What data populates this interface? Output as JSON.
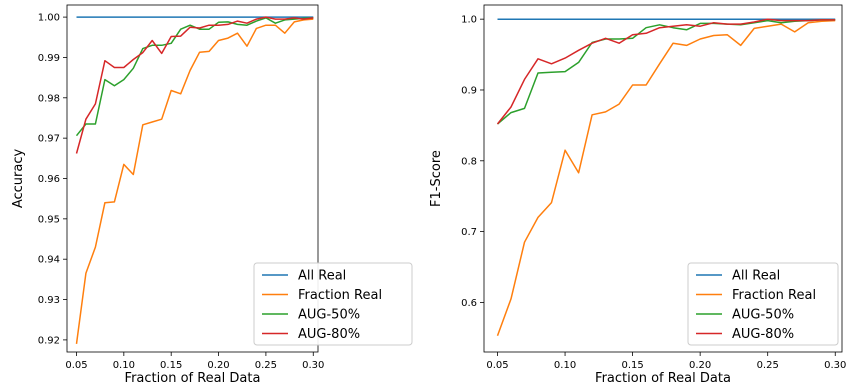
{
  "chart_data": [
    {
      "type": "line",
      "title": "",
      "xlabel": "Fraction of Real Data",
      "ylabel": "Accuracy",
      "xlim": [
        0.04,
        0.305
      ],
      "ylim": [
        0.917,
        1.003
      ],
      "xticks": [
        0.05,
        0.1,
        0.15,
        0.2,
        0.25,
        0.3
      ],
      "xtick_labels": [
        "0.05",
        "0.10",
        "0.15",
        "0.20",
        "0.25",
        "0.30"
      ],
      "yticks": [
        0.92,
        0.93,
        0.94,
        0.95,
        0.96,
        0.97,
        0.98,
        0.99,
        1.0
      ],
      "ytick_labels": [
        "0.92",
        "0.93",
        "0.94",
        "0.95",
        "0.96",
        "0.97",
        "0.98",
        "0.99",
        "1.00"
      ],
      "grid": false,
      "legend_position": "bottom-right",
      "x": [
        0.05,
        0.06,
        0.07,
        0.08,
        0.09,
        0.1,
        0.11,
        0.12,
        0.13,
        0.14,
        0.15,
        0.16,
        0.17,
        0.18,
        0.19,
        0.2,
        0.21,
        0.22,
        0.23,
        0.24,
        0.25,
        0.26,
        0.27,
        0.28,
        0.29,
        0.3
      ],
      "series": [
        {
          "name": "All Real",
          "color": "#1f77b4",
          "values": [
            1.0,
            1.0,
            1.0,
            1.0,
            1.0,
            1.0,
            1.0,
            1.0,
            1.0,
            1.0,
            1.0,
            1.0,
            1.0,
            1.0,
            1.0,
            1.0,
            1.0,
            1.0,
            1.0,
            1.0,
            1.0,
            1.0,
            1.0,
            1.0,
            1.0,
            1.0
          ]
        },
        {
          "name": "Fraction Real",
          "color": "#ff7f0e",
          "values": [
            0.919,
            0.9365,
            0.943,
            0.954,
            0.9542,
            0.9635,
            0.961,
            0.9733,
            0.974,
            0.9747,
            0.9818,
            0.981,
            0.9868,
            0.9913,
            0.9915,
            0.9942,
            0.9948,
            0.996,
            0.9928,
            0.9972,
            0.998,
            0.998,
            0.996,
            0.9988,
            0.9993,
            0.9995
          ]
        },
        {
          "name": "AUG-50%",
          "color": "#2ca02c",
          "values": [
            0.9706,
            0.9735,
            0.9735,
            0.9845,
            0.983,
            0.9845,
            0.9873,
            0.9922,
            0.993,
            0.993,
            0.9935,
            0.997,
            0.998,
            0.997,
            0.997,
            0.9987,
            0.9988,
            0.9982,
            0.998,
            0.999,
            0.9998,
            0.9985,
            0.9993,
            0.9995,
            0.9997,
            0.9998
          ]
        },
        {
          "name": "AUG-80%",
          "color": "#d62728",
          "values": [
            0.9662,
            0.9747,
            0.9785,
            0.9892,
            0.9875,
            0.9875,
            0.9895,
            0.9912,
            0.9942,
            0.991,
            0.9952,
            0.9953,
            0.9975,
            0.9973,
            0.998,
            0.998,
            0.9982,
            0.999,
            0.9985,
            0.9995,
            1.0,
            0.9995,
            0.9995,
            0.9998,
            0.9995,
            0.9998
          ]
        }
      ]
    },
    {
      "type": "line",
      "title": "",
      "xlabel": "Fraction of Real Data",
      "ylabel": "F1-Score",
      "xlim": [
        0.04,
        0.305
      ],
      "ylim": [
        0.53,
        1.02
      ],
      "xticks": [
        0.05,
        0.1,
        0.15,
        0.2,
        0.25,
        0.3
      ],
      "xtick_labels": [
        "0.05",
        "0.10",
        "0.15",
        "0.20",
        "0.25",
        "0.30"
      ],
      "yticks": [
        0.6,
        0.7,
        0.8,
        0.9,
        1.0
      ],
      "ytick_labels": [
        "0.6",
        "0.7",
        "0.8",
        "0.9",
        "1.0"
      ],
      "grid": false,
      "legend_position": "bottom-right",
      "x": [
        0.05,
        0.06,
        0.07,
        0.08,
        0.09,
        0.1,
        0.11,
        0.12,
        0.13,
        0.14,
        0.15,
        0.16,
        0.17,
        0.18,
        0.19,
        0.2,
        0.21,
        0.22,
        0.23,
        0.24,
        0.25,
        0.26,
        0.27,
        0.28,
        0.29,
        0.3
      ],
      "series": [
        {
          "name": "All Real",
          "color": "#1f77b4",
          "values": [
            1.0,
            1.0,
            1.0,
            1.0,
            1.0,
            1.0,
            1.0,
            1.0,
            1.0,
            1.0,
            1.0,
            1.0,
            1.0,
            1.0,
            1.0,
            1.0,
            1.0,
            1.0,
            1.0,
            1.0,
            1.0,
            1.0,
            1.0,
            1.0,
            1.0,
            1.0
          ]
        },
        {
          "name": "Fraction Real",
          "color": "#ff7f0e",
          "values": [
            0.553,
            0.605,
            0.685,
            0.72,
            0.741,
            0.815,
            0.783,
            0.865,
            0.869,
            0.88,
            0.907,
            0.907,
            0.937,
            0.966,
            0.963,
            0.972,
            0.977,
            0.978,
            0.963,
            0.987,
            0.99,
            0.993,
            0.982,
            0.995,
            0.997,
            0.998
          ]
        },
        {
          "name": "AUG-50%",
          "color": "#2ca02c",
          "values": [
            0.852,
            0.868,
            0.874,
            0.924,
            0.925,
            0.926,
            0.939,
            0.967,
            0.972,
            0.972,
            0.973,
            0.988,
            0.992,
            0.988,
            0.985,
            0.994,
            0.994,
            0.993,
            0.992,
            0.995,
            0.998,
            0.995,
            0.997,
            0.998,
            0.999,
            0.999
          ]
        },
        {
          "name": "AUG-80%",
          "color": "#d62728",
          "values": [
            0.852,
            0.876,
            0.915,
            0.944,
            0.937,
            0.945,
            0.956,
            0.966,
            0.973,
            0.966,
            0.978,
            0.98,
            0.988,
            0.99,
            0.992,
            0.99,
            0.995,
            0.993,
            0.993,
            0.996,
            1.0,
            0.998,
            0.998,
            0.998,
            0.999,
            0.999
          ]
        }
      ]
    }
  ]
}
